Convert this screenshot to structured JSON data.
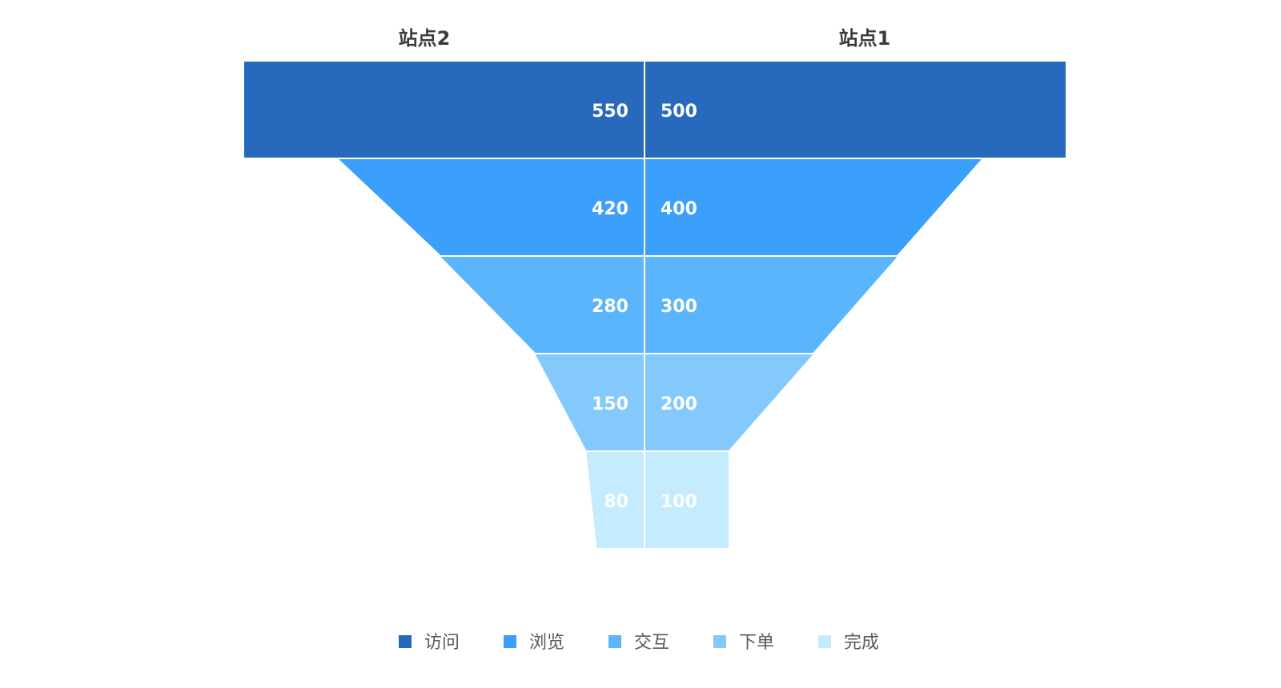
{
  "chart_data": {
    "type": "funnel",
    "categories": [
      "访问",
      "浏览",
      "交互",
      "下单",
      "完成"
    ],
    "series": [
      {
        "name": "站点2",
        "values": [
          550,
          420,
          280,
          150,
          80
        ]
      },
      {
        "name": "站点1",
        "values": [
          500,
          400,
          300,
          200,
          100
        ]
      }
    ],
    "colors": [
      "#2769bd",
      "#3b9ffc",
      "#5bb5fc",
      "#84c9fc",
      "#c5ebfe"
    ],
    "legend_position": "bottom",
    "grid": false
  }
}
